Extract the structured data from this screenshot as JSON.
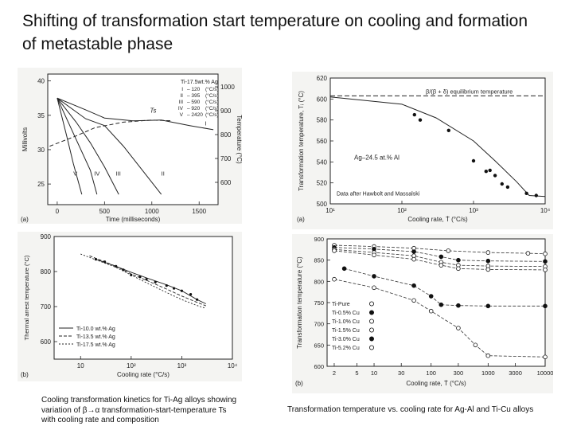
{
  "slide": {
    "title_line1": "Shifting of transformation start temperature on cooling and formation",
    "title_line2": "of metastable phase"
  },
  "captions": {
    "left_line1": "Cooling transformation kinetics for Ti-Ag alloys showing",
    "left_line2": "variation of β→α transformation-start-temperature Ts",
    "left_line3": "with cooling rate and composition",
    "right": "Transformation temperature vs. cooling rate for Ag-Al and Ti-Cu alloys"
  },
  "chart_data": [
    {
      "id": "a-left",
      "panel_label": "(a)",
      "type": "line",
      "xlabel": "Time (milliseconds)",
      "ylabel_left": "Millivolts",
      "ylabel_right": "Temperature (°C)",
      "x_ticks": [
        "0",
        "500",
        "1000",
        "1500"
      ],
      "y_ticks_left": [
        "25",
        "30",
        "35",
        "40"
      ],
      "y_ticks_right": [
        "600",
        "700",
        "800",
        "900",
        "1000"
      ],
      "xlim": [
        -100,
        1700
      ],
      "ylim": [
        22,
        41
      ],
      "ts_label": "Ts",
      "legend": {
        "title": "Ti-17.5wt.% Ag",
        "rows": [
          {
            "id": "I",
            "rate": "120",
            "unit": "(°C/s)"
          },
          {
            "id": "II",
            "rate": "395",
            "unit": "(°C/s)"
          },
          {
            "id": "III",
            "rate": "590",
            "unit": "(°C/s)"
          },
          {
            "id": "IV",
            "rate": "920",
            "unit": "(°C/s)"
          },
          {
            "id": "V",
            "rate": "2420",
            "unit": "(°C/s)"
          }
        ]
      },
      "curve_labels": [
        "V",
        "IV",
        "III",
        "II",
        "I"
      ],
      "series": [
        {
          "name": "I",
          "x": [
            0,
            300,
            500,
            800,
            1100,
            1400,
            1650
          ],
          "y": [
            37.5,
            35.8,
            34.6,
            34.2,
            34.3,
            33.5,
            32.9
          ]
        },
        {
          "name": "II",
          "x": [
            0,
            300,
            500,
            700,
            900,
            1100
          ],
          "y": [
            37.5,
            34.5,
            33.5,
            30.5,
            27,
            23.5
          ]
        },
        {
          "name": "III",
          "x": [
            0,
            200,
            350,
            500,
            650
          ],
          "y": [
            37.5,
            34,
            31,
            27.5,
            23.5
          ]
        },
        {
          "name": "IV",
          "x": [
            0,
            150,
            250,
            350,
            420
          ],
          "y": [
            37.5,
            33,
            30,
            27,
            23.5
          ]
        },
        {
          "name": "V",
          "x": [
            0,
            100,
            170,
            260
          ],
          "y": [
            37.5,
            32,
            28,
            23.5
          ]
        },
        {
          "name": "Ts",
          "x": [
            -80,
            200,
            400,
            700,
            1000,
            1200
          ],
          "y": [
            30.5,
            32,
            33.2,
            34,
            34.3,
            34.2
          ]
        }
      ]
    },
    {
      "id": "a-right",
      "panel_label": "(a)",
      "type": "scatter",
      "xlabel": "Cooling rate, Ṫ (°C/s)",
      "ylabel": "Transformation temperature, Tᵢ (°C)",
      "x_scale": "log",
      "xlim": [
        10,
        10000
      ],
      "ylim": [
        500,
        620
      ],
      "x_ticks": [
        "10¹",
        "10²",
        "10³",
        "10⁴"
      ],
      "y_ticks": [
        "500",
        "520",
        "540",
        "560",
        "580",
        "600",
        "620"
      ],
      "annotations": [
        "β/(β + δ) equilibrium temperature",
        "Ag–24.5 at.% Al",
        "Data after Hawbolt and Massalski"
      ],
      "equilibrium_temperature": 603,
      "points": {
        "x": [
          150,
          180,
          450,
          1000,
          1500,
          1700,
          2000,
          2500,
          3000,
          5500,
          7500
        ],
        "y": [
          585,
          580,
          570,
          541,
          531,
          532,
          527,
          519,
          516,
          510,
          508
        ]
      },
      "fit_line": {
        "x": [
          10,
          100,
          300,
          1000,
          2000,
          4000,
          6000,
          10000
        ],
        "y": [
          602,
          595,
          582,
          560,
          541,
          521,
          508,
          507
        ]
      }
    },
    {
      "id": "b-left",
      "panel_label": "(b)",
      "type": "line",
      "xlabel": "Cooling rate (°C/s)",
      "ylabel": "Thermal arrest temperature (°C)",
      "x_scale": "log",
      "xlim": [
        3,
        10000
      ],
      "ylim": [
        550,
        900
      ],
      "x_ticks": [
        "10",
        "10²",
        "10³",
        "10⁴"
      ],
      "y_ticks": [
        "600",
        "700",
        "800",
        "900"
      ],
      "legend": [
        "Ti-10.0 wt.% Ag",
        "Ti-13.5 wt.% Ag",
        "Ti-17.5 wt.% Ag"
      ],
      "series": [
        {
          "name": "Ti-10.0 wt.% Ag",
          "x": [
            20,
            50,
            100,
            200,
            500,
            1000,
            2000,
            3000
          ],
          "y": [
            835,
            815,
            798,
            782,
            762,
            745,
            720,
            708
          ]
        },
        {
          "name": "Ti-13.5 wt.% Ag",
          "x": [
            15,
            50,
            100,
            200,
            500,
            1000,
            2000,
            3000
          ],
          "y": [
            845,
            815,
            793,
            775,
            750,
            730,
            712,
            702
          ]
        },
        {
          "name": "Ti-17.5 wt.% Ag",
          "x": [
            10,
            50,
            100,
            200,
            500,
            1000,
            2000,
            3000
          ],
          "y": [
            850,
            812,
            790,
            768,
            740,
            720,
            703,
            695
          ]
        }
      ],
      "points": {
        "x": [
          20,
          30,
          50,
          70,
          100,
          150,
          200,
          300,
          500,
          700,
          1000,
          1500,
          2000
        ],
        "y": [
          835,
          828,
          815,
          805,
          790,
          785,
          778,
          770,
          760,
          752,
          745,
          735,
          720
        ]
      }
    },
    {
      "id": "b-right",
      "panel_label": "(b)",
      "type": "line",
      "xlabel": "Cooling rate, Ṫ (°C/s)",
      "ylabel": "Transformation temperature (°C)",
      "x_scale": "log",
      "xlim": [
        1.5,
        10000
      ],
      "ylim": [
        600,
        900
      ],
      "x_ticks": [
        "2",
        "5",
        "10",
        "30",
        "100",
        "300",
        "1000",
        "3000",
        "10000"
      ],
      "y_ticks": [
        "600",
        "650",
        "700",
        "750",
        "800",
        "850",
        "900"
      ],
      "legend": [
        "Ti-Pure",
        "Ti-0.5% Cu",
        "Ti-1.0% Cu",
        "Ti-1.5% Cu",
        "Ti-3.0% Cu",
        "Ti-5.2% Cu"
      ],
      "series": [
        {
          "name": "Ti-Pure",
          "x": [
            2,
            10,
            50,
            200,
            1000,
            5000,
            10000
          ],
          "y": [
            885,
            882,
            878,
            872,
            868,
            866,
            865
          ]
        },
        {
          "name": "Ti-0.5% Cu",
          "x": [
            2,
            10,
            50,
            150,
            300,
            1000,
            10000
          ],
          "y": [
            880,
            876,
            870,
            858,
            850,
            848,
            847
          ]
        },
        {
          "name": "Ti-1.0% Cu",
          "x": [
            2,
            10,
            50,
            150,
            300,
            1000,
            10000
          ],
          "y": [
            875,
            868,
            860,
            845,
            838,
            836,
            835
          ]
        },
        {
          "name": "Ti-1.5% Cu",
          "x": [
            2,
            10,
            50,
            150,
            300,
            1000,
            10000
          ],
          "y": [
            872,
            862,
            852,
            838,
            830,
            828,
            827
          ]
        },
        {
          "name": "Ti-3.0% Cu",
          "x": [
            3,
            10,
            50,
            100,
            150,
            300,
            1000,
            10000
          ],
          "y": [
            830,
            812,
            790,
            765,
            745,
            743,
            742,
            742
          ]
        },
        {
          "name": "Ti-5.2% Cu",
          "x": [
            2,
            10,
            50,
            100,
            300,
            600,
            1000,
            10000
          ],
          "y": [
            805,
            785,
            755,
            730,
            690,
            650,
            625,
            622
          ]
        }
      ]
    }
  ]
}
